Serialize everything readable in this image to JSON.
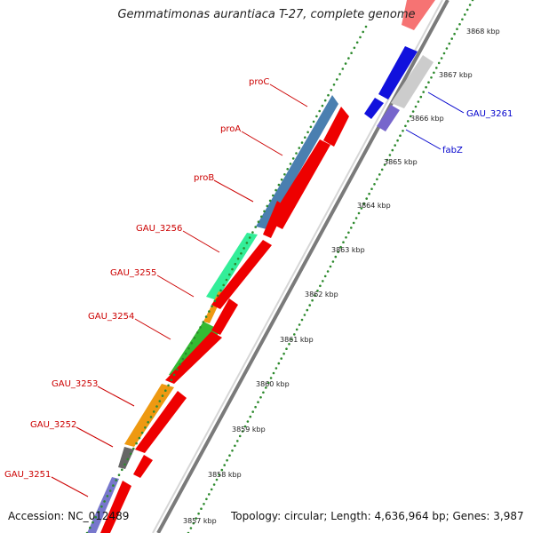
{
  "title": "Gemmatimonas aurantiaca T-27, complete genome",
  "footer": {
    "accession": "Accession: NC_012489",
    "summary": "Topology: circular; Length: 4,636,964 bp; Genes: 3,987"
  },
  "colors": {
    "backbone": "#8a8a8a",
    "dots": "#2d8a2d",
    "left_label": "#cc0000",
    "right_label": "#0000cc"
  },
  "scale_ticks": [
    "3868 kbp",
    "3867 kbp",
    "3866 kbp",
    "3865 kbp",
    "3864 kbp",
    "3863 kbp",
    "3862 kbp",
    "3861 kbp",
    "3860 kbp",
    "3859 kbp",
    "3858 kbp",
    "3857 kbp"
  ],
  "gene_labels": [
    {
      "name": "proC",
      "side": "left"
    },
    {
      "name": "proA",
      "side": "left"
    },
    {
      "name": "proB",
      "side": "left"
    },
    {
      "name": "GAU_3256",
      "side": "left"
    },
    {
      "name": "GAU_3255",
      "side": "left"
    },
    {
      "name": "GAU_3254",
      "side": "left"
    },
    {
      "name": "GAU_3253",
      "side": "left"
    },
    {
      "name": "GAU_3252",
      "side": "left"
    },
    {
      "name": "GAU_3251",
      "side": "left"
    },
    {
      "name": "GAU_3261",
      "side": "right"
    },
    {
      "name": "fabZ",
      "side": "right"
    }
  ]
}
